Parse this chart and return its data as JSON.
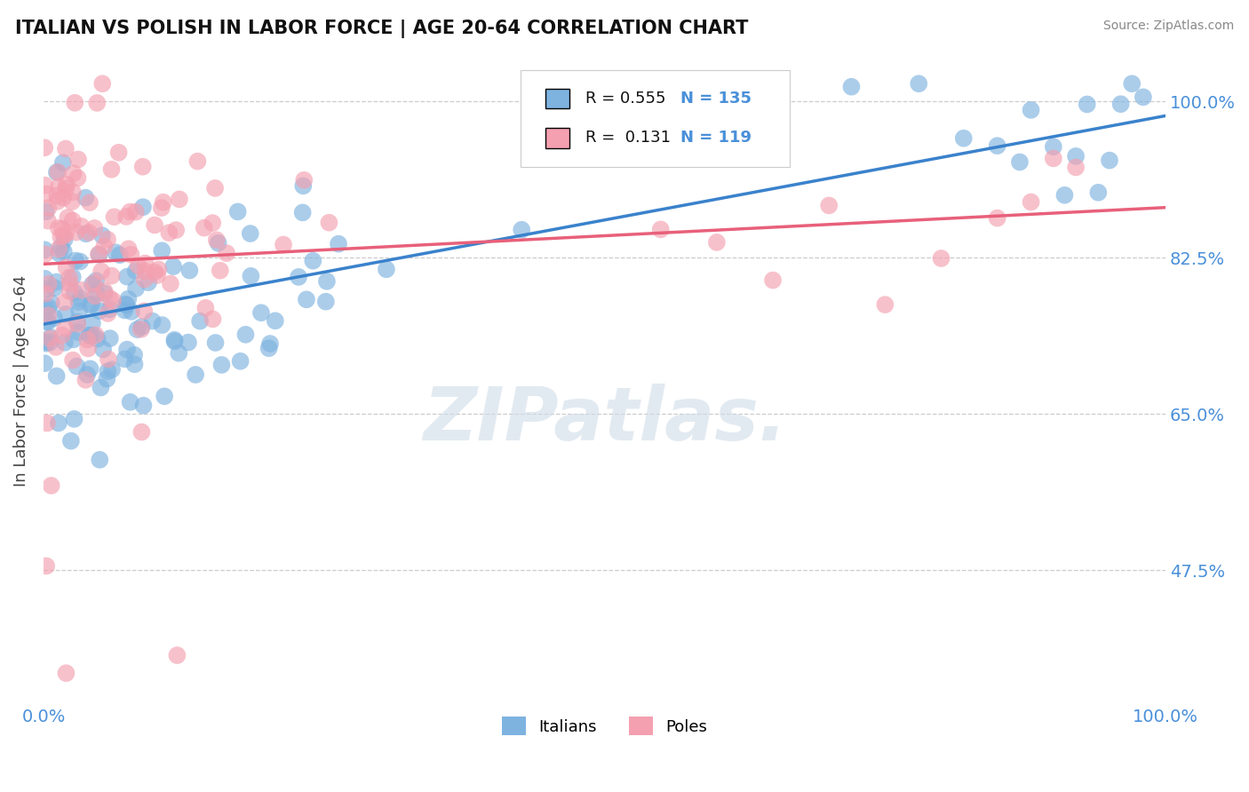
{
  "title": "ITALIAN VS POLISH IN LABOR FORCE | AGE 20-64 CORRELATION CHART",
  "source": "Source: ZipAtlas.com",
  "ylabel": "In Labor Force | Age 20-64",
  "xlim": [
    0.0,
    1.0
  ],
  "ylim": [
    0.325,
    1.05
  ],
  "yticks": [
    0.475,
    0.65,
    0.825,
    1.0
  ],
  "ytick_labels": [
    "47.5%",
    "65.0%",
    "82.5%",
    "100.0%"
  ],
  "xtick_labels": [
    "0.0%",
    "100.0%"
  ],
  "italian_color": "#7eb3e0",
  "polish_color": "#f4a0b0",
  "italian_line_color": "#3a82cc",
  "polish_line_color": "#e8607a",
  "R_italian": 0.555,
  "N_italian": 135,
  "R_polish": 0.131,
  "N_polish": 119,
  "watermark": "ZIPatlas.",
  "background_color": "#ffffff",
  "grid_color": "#cccccc",
  "tick_label_color": "#4a90d9"
}
